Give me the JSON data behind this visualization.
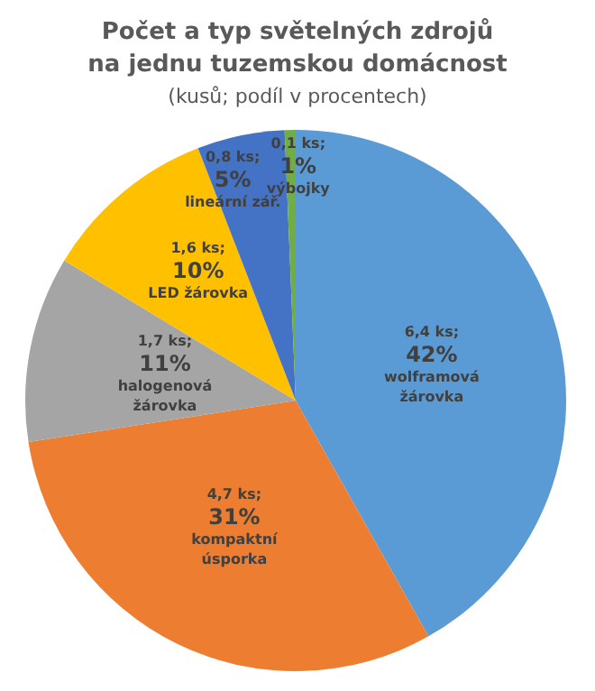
{
  "chart_data": {
    "type": "pie",
    "title": "Počet a typ světelných zdrojů\nna jednu tuzemskou domácnost",
    "subtitle": "(kusů; podíl v procentech)",
    "categories": [
      "wolframová\nžárovka",
      "kompaktní\núsporka",
      "halogenová\nžárovka",
      "LED žárovka",
      "lineární zář.",
      "výbojky"
    ],
    "values": [
      6.4,
      4.7,
      1.7,
      1.6,
      0.8,
      0.1
    ],
    "value_labels": [
      "6,4 ks;\n42%",
      "4,7 ks;\n31%",
      "1,7 ks;\n11%",
      "1,6 ks;\n10%",
      "0,8 ks;\n5%",
      "0,1 ks;\n1%"
    ],
    "colors": [
      "#5b9bd5",
      "#ed7d31",
      "#a5a5a5",
      "#ffc000",
      "#4472c4",
      "#70ad47"
    ]
  }
}
